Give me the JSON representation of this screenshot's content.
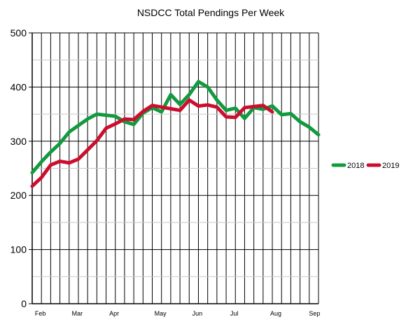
{
  "chart_data": {
    "type": "line",
    "title": "NSDCC Total Pendings Per Week",
    "xlabel": "",
    "ylabel": "",
    "ylim": [
      0,
      500
    ],
    "yticks": [
      0,
      100,
      200,
      300,
      400,
      500
    ],
    "month_labels": [
      "Feb",
      "Mar",
      "Apr",
      "May",
      "Jun",
      "Jul",
      "Aug",
      "Sep"
    ],
    "grid": true,
    "legend_position": "right",
    "series": [
      {
        "name": "2018",
        "color": "#129a3f",
        "values": [
          242,
          262,
          280,
          296,
          317,
          329,
          341,
          350,
          348,
          346,
          336,
          331,
          352,
          362,
          354,
          386,
          368,
          386,
          410,
          400,
          376,
          357,
          361,
          342,
          362,
          359,
          365,
          349,
          351,
          336,
          326,
          312
        ]
      },
      {
        "name": "2019",
        "color": "#cc0e2e",
        "values": [
          217,
          233,
          256,
          263,
          260,
          267,
          284,
          301,
          324,
          332,
          341,
          340,
          355,
          366,
          363,
          360,
          357,
          376,
          365,
          367,
          363,
          345,
          344,
          362,
          364,
          366,
          354
        ]
      }
    ]
  }
}
